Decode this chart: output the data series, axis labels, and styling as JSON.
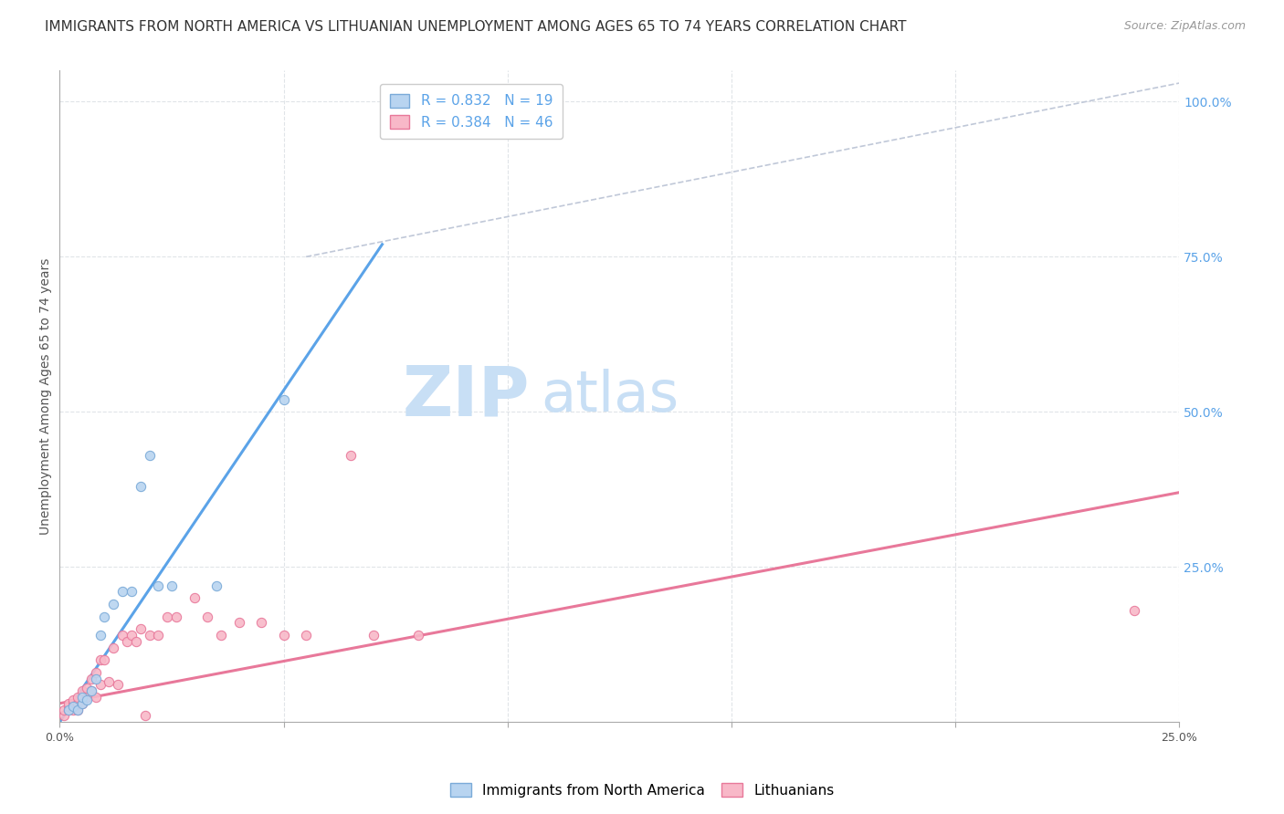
{
  "title": "IMMIGRANTS FROM NORTH AMERICA VS LITHUANIAN UNEMPLOYMENT AMONG AGES 65 TO 74 YEARS CORRELATION CHART",
  "source": "Source: ZipAtlas.com",
  "ylabel": "Unemployment Among Ages 65 to 74 years",
  "xlabel": "",
  "xlim": [
    0.0,
    0.25
  ],
  "ylim": [
    0.0,
    1.05
  ],
  "xticks": [
    0.0,
    0.05,
    0.1,
    0.15,
    0.2,
    0.25
  ],
  "xtick_labels": [
    "0.0%",
    "",
    "",
    "",
    "",
    "25.0%"
  ],
  "yticks_right": [
    0.25,
    0.5,
    0.75,
    1.0
  ],
  "ytick_right_labels": [
    "25.0%",
    "50.0%",
    "75.0%",
    "100.0%"
  ],
  "blue_scatter_x": [
    0.002,
    0.003,
    0.004,
    0.005,
    0.005,
    0.006,
    0.007,
    0.008,
    0.009,
    0.01,
    0.012,
    0.014,
    0.016,
    0.018,
    0.02,
    0.022,
    0.025,
    0.035,
    0.05
  ],
  "blue_scatter_y": [
    0.02,
    0.025,
    0.02,
    0.03,
    0.04,
    0.035,
    0.05,
    0.07,
    0.14,
    0.17,
    0.19,
    0.21,
    0.21,
    0.38,
    0.43,
    0.22,
    0.22,
    0.22,
    0.52
  ],
  "pink_scatter_x": [
    0.001,
    0.001,
    0.002,
    0.002,
    0.002,
    0.003,
    0.003,
    0.003,
    0.004,
    0.004,
    0.004,
    0.005,
    0.005,
    0.006,
    0.006,
    0.007,
    0.007,
    0.008,
    0.008,
    0.009,
    0.009,
    0.01,
    0.011,
    0.012,
    0.013,
    0.014,
    0.015,
    0.016,
    0.017,
    0.018,
    0.019,
    0.02,
    0.022,
    0.024,
    0.026,
    0.03,
    0.033,
    0.036,
    0.04,
    0.045,
    0.05,
    0.055,
    0.065,
    0.07,
    0.08,
    0.24
  ],
  "pink_scatter_y": [
    0.01,
    0.02,
    0.02,
    0.025,
    0.03,
    0.02,
    0.03,
    0.035,
    0.02,
    0.03,
    0.04,
    0.03,
    0.05,
    0.04,
    0.055,
    0.05,
    0.07,
    0.04,
    0.08,
    0.06,
    0.1,
    0.1,
    0.065,
    0.12,
    0.06,
    0.14,
    0.13,
    0.14,
    0.13,
    0.15,
    0.01,
    0.14,
    0.14,
    0.17,
    0.17,
    0.2,
    0.17,
    0.14,
    0.16,
    0.16,
    0.14,
    0.14,
    0.43,
    0.14,
    0.14,
    0.18
  ],
  "blue_line_x": [
    0.0,
    0.072
  ],
  "blue_line_y": [
    0.0,
    0.77
  ],
  "pink_line_x": [
    0.0,
    0.25
  ],
  "pink_line_y": [
    0.03,
    0.37
  ],
  "ref_line_x": [
    0.055,
    0.25
  ],
  "ref_line_y": [
    0.75,
    1.03
  ],
  "scatter_size": 55,
  "blue_color": "#b8d4f0",
  "pink_color": "#f8b8c8",
  "blue_edge_color": "#7aaad8",
  "pink_edge_color": "#e8789a",
  "blue_line_color": "#5ba3e8",
  "pink_line_color": "#e8789a",
  "ref_line_color": "#c0c8d8",
  "right_axis_color": "#5ba3e8",
  "grid_color": "#e0e4e8",
  "title_fontsize": 11,
  "source_fontsize": 9,
  "axis_label_fontsize": 10,
  "tick_fontsize": 9,
  "legend_fontsize": 11,
  "watermark_zip_color": "#c8dff5",
  "watermark_atlas_color": "#c8dff5",
  "watermark_fontsize": 55,
  "background_color": "#ffffff"
}
